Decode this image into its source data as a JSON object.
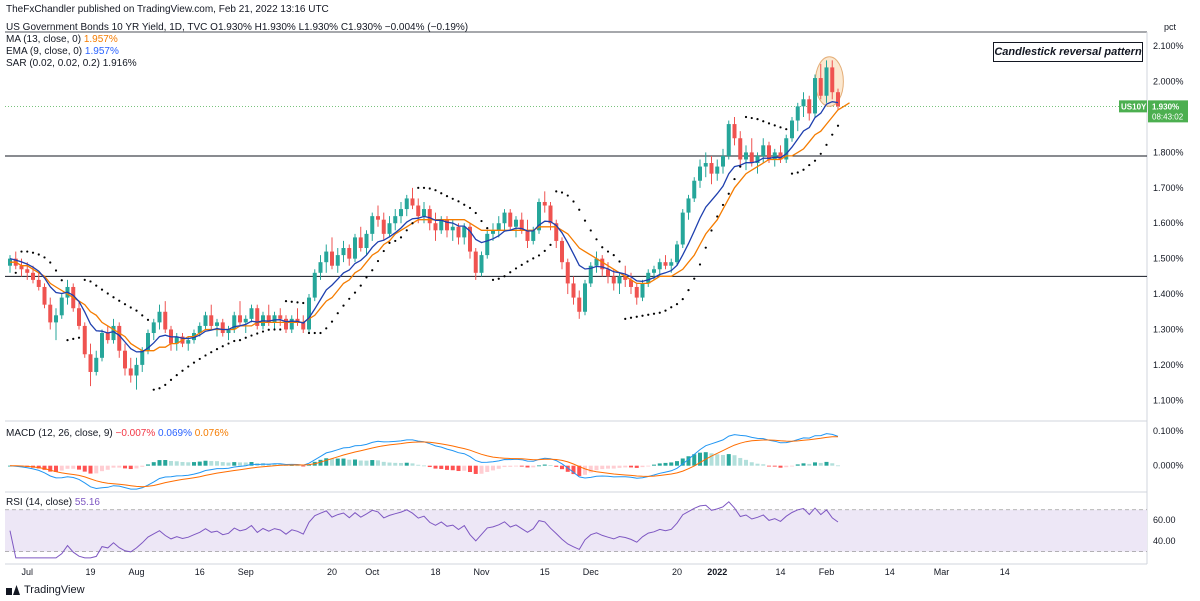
{
  "header": {
    "publisher": "TheFxChandler published on TradingView.com, Feb 21, 2022 13:16 UTC",
    "symbol_line": "US Government Bonds 10 YR Yield, 1D, TVC  O1.930%  H1.930%  L1.930%  C1.930%  −0.004% (−0.19%)",
    "ma_label": "MA (13, close, 0)",
    "ma_value": "1.957%",
    "ema_label": "EMA (9, close, 0)",
    "ema_value": "1.957%",
    "sar_label": "SAR (0.02, 0.02, 0.2)",
    "sar_value": "1.916%",
    "macd_label": "MACD (12, 26, close, 9)",
    "macd_value_1": "−0.007%",
    "macd_value_2": "0.069%",
    "macd_value_3": "0.076%",
    "rsi_label": "RSI (14, close)",
    "rsi_value": "55.16"
  },
  "annotation": "Candlestick reversal pattern",
  "footer": {
    "brand": "TradingView"
  },
  "colors": {
    "up": "#26a69a",
    "down": "#ef5350",
    "ma": "#f57c00",
    "ema": "#1e3fae",
    "sar": "#000000",
    "macd_line": "#2196f3",
    "signal_line": "#ff6d00",
    "rsi": "#7e57c2",
    "rsi_band": "#ede7f6",
    "price_label_bg": "#4caf50",
    "annotation_circle": "#fbe4c8"
  },
  "chart_data": {
    "type": "candlestick",
    "axis_unit_label": "pct",
    "y_ticks": [
      "2.100%",
      "2.000%",
      "1.900%",
      "1.800%",
      "1.700%",
      "1.600%",
      "1.500%",
      "1.400%",
      "1.300%",
      "1.200%",
      "1.100%"
    ],
    "y_tick_values": [
      2.1,
      2.0,
      1.9,
      1.8,
      1.7,
      1.6,
      1.5,
      1.4,
      1.3,
      1.2,
      1.1
    ],
    "ylim": [
      1.05,
      2.14
    ],
    "x_ticks": [
      "Jul",
      "19",
      "Aug",
      "16",
      "Sep",
      "20",
      "Oct",
      "18",
      "Nov",
      "15",
      "Dec",
      "20",
      "2022",
      "14",
      "Feb",
      "14",
      "Mar",
      "14"
    ],
    "x_tick_bar_index": [
      3,
      14,
      22,
      33,
      41,
      56,
      63,
      74,
      82,
      93,
      101,
      116,
      123,
      134,
      142,
      153,
      162,
      173
    ],
    "horizontal_levels": [
      1.79,
      1.45
    ],
    "current_price": {
      "symbol": "US10Y",
      "price": "1.930%",
      "countdown": "08:43:02"
    },
    "ohlc": [
      [
        1.48,
        1.51,
        1.46,
        1.5
      ],
      [
        1.5,
        1.52,
        1.47,
        1.48
      ],
      [
        1.48,
        1.5,
        1.45,
        1.47
      ],
      [
        1.47,
        1.49,
        1.44,
        1.46
      ],
      [
        1.46,
        1.48,
        1.43,
        1.44
      ],
      [
        1.44,
        1.46,
        1.41,
        1.42
      ],
      [
        1.42,
        1.43,
        1.36,
        1.37
      ],
      [
        1.37,
        1.39,
        1.3,
        1.32
      ],
      [
        1.32,
        1.36,
        1.27,
        1.34
      ],
      [
        1.34,
        1.4,
        1.33,
        1.39
      ],
      [
        1.39,
        1.44,
        1.37,
        1.42
      ],
      [
        1.42,
        1.43,
        1.35,
        1.36
      ],
      [
        1.36,
        1.38,
        1.3,
        1.31
      ],
      [
        1.31,
        1.32,
        1.22,
        1.23
      ],
      [
        1.23,
        1.26,
        1.14,
        1.18
      ],
      [
        1.18,
        1.24,
        1.17,
        1.22
      ],
      [
        1.22,
        1.3,
        1.21,
        1.29
      ],
      [
        1.29,
        1.31,
        1.26,
        1.27
      ],
      [
        1.27,
        1.33,
        1.26,
        1.31
      ],
      [
        1.31,
        1.32,
        1.22,
        1.24
      ],
      [
        1.24,
        1.26,
        1.17,
        1.19
      ],
      [
        1.19,
        1.22,
        1.15,
        1.17
      ],
      [
        1.17,
        1.22,
        1.13,
        1.2
      ],
      [
        1.2,
        1.25,
        1.18,
        1.24
      ],
      [
        1.24,
        1.3,
        1.23,
        1.29
      ],
      [
        1.29,
        1.33,
        1.27,
        1.32
      ],
      [
        1.32,
        1.37,
        1.3,
        1.35
      ],
      [
        1.35,
        1.38,
        1.29,
        1.3
      ],
      [
        1.3,
        1.31,
        1.24,
        1.26
      ],
      [
        1.26,
        1.29,
        1.24,
        1.28
      ],
      [
        1.28,
        1.29,
        1.25,
        1.26
      ],
      [
        1.26,
        1.28,
        1.24,
        1.27
      ],
      [
        1.27,
        1.3,
        1.26,
        1.29
      ],
      [
        1.29,
        1.32,
        1.28,
        1.31
      ],
      [
        1.31,
        1.35,
        1.3,
        1.34
      ],
      [
        1.34,
        1.37,
        1.3,
        1.31
      ],
      [
        1.31,
        1.33,
        1.28,
        1.32
      ],
      [
        1.32,
        1.33,
        1.28,
        1.29
      ],
      [
        1.29,
        1.31,
        1.27,
        1.3
      ],
      [
        1.3,
        1.35,
        1.29,
        1.34
      ],
      [
        1.34,
        1.38,
        1.31,
        1.32
      ],
      [
        1.32,
        1.34,
        1.29,
        1.33
      ],
      [
        1.33,
        1.37,
        1.32,
        1.36
      ],
      [
        1.36,
        1.37,
        1.3,
        1.31
      ],
      [
        1.31,
        1.35,
        1.3,
        1.34
      ],
      [
        1.34,
        1.37,
        1.31,
        1.32
      ],
      [
        1.32,
        1.35,
        1.3,
        1.34
      ],
      [
        1.34,
        1.36,
        1.31,
        1.33
      ],
      [
        1.33,
        1.34,
        1.29,
        1.3
      ],
      [
        1.3,
        1.34,
        1.29,
        1.33
      ],
      [
        1.33,
        1.36,
        1.31,
        1.32
      ],
      [
        1.32,
        1.34,
        1.29,
        1.3
      ],
      [
        1.3,
        1.4,
        1.29,
        1.39
      ],
      [
        1.39,
        1.47,
        1.38,
        1.46
      ],
      [
        1.46,
        1.51,
        1.44,
        1.49
      ],
      [
        1.49,
        1.54,
        1.46,
        1.52
      ],
      [
        1.52,
        1.56,
        1.47,
        1.48
      ],
      [
        1.48,
        1.53,
        1.46,
        1.51
      ],
      [
        1.51,
        1.55,
        1.49,
        1.53
      ],
      [
        1.53,
        1.54,
        1.48,
        1.5
      ],
      [
        1.5,
        1.57,
        1.49,
        1.56
      ],
      [
        1.56,
        1.59,
        1.52,
        1.53
      ],
      [
        1.53,
        1.58,
        1.51,
        1.57
      ],
      [
        1.57,
        1.63,
        1.55,
        1.62
      ],
      [
        1.62,
        1.65,
        1.59,
        1.61
      ],
      [
        1.61,
        1.63,
        1.55,
        1.57
      ],
      [
        1.57,
        1.62,
        1.56,
        1.6
      ],
      [
        1.6,
        1.64,
        1.58,
        1.62
      ],
      [
        1.62,
        1.66,
        1.6,
        1.64
      ],
      [
        1.64,
        1.68,
        1.62,
        1.67
      ],
      [
        1.67,
        1.7,
        1.64,
        1.65
      ],
      [
        1.65,
        1.67,
        1.6,
        1.62
      ],
      [
        1.62,
        1.66,
        1.6,
        1.64
      ],
      [
        1.64,
        1.65,
        1.58,
        1.6
      ],
      [
        1.6,
        1.63,
        1.55,
        1.58
      ],
      [
        1.58,
        1.62,
        1.57,
        1.61
      ],
      [
        1.61,
        1.62,
        1.56,
        1.58
      ],
      [
        1.58,
        1.61,
        1.55,
        1.59
      ],
      [
        1.59,
        1.6,
        1.54,
        1.56
      ],
      [
        1.56,
        1.6,
        1.54,
        1.59
      ],
      [
        1.59,
        1.6,
        1.5,
        1.52
      ],
      [
        1.52,
        1.53,
        1.44,
        1.46
      ],
      [
        1.46,
        1.52,
        1.45,
        1.51
      ],
      [
        1.51,
        1.58,
        1.5,
        1.57
      ],
      [
        1.57,
        1.6,
        1.55,
        1.58
      ],
      [
        1.58,
        1.62,
        1.56,
        1.6
      ],
      [
        1.6,
        1.64,
        1.58,
        1.63
      ],
      [
        1.63,
        1.64,
        1.58,
        1.59
      ],
      [
        1.59,
        1.62,
        1.56,
        1.61
      ],
      [
        1.61,
        1.63,
        1.57,
        1.58
      ],
      [
        1.58,
        1.61,
        1.53,
        1.55
      ],
      [
        1.55,
        1.59,
        1.54,
        1.58
      ],
      [
        1.58,
        1.67,
        1.57,
        1.66
      ],
      [
        1.66,
        1.69,
        1.63,
        1.65
      ],
      [
        1.65,
        1.66,
        1.58,
        1.6
      ],
      [
        1.6,
        1.61,
        1.53,
        1.55
      ],
      [
        1.55,
        1.56,
        1.47,
        1.49
      ],
      [
        1.49,
        1.5,
        1.4,
        1.43
      ],
      [
        1.43,
        1.45,
        1.37,
        1.39
      ],
      [
        1.39,
        1.41,
        1.33,
        1.35
      ],
      [
        1.35,
        1.44,
        1.34,
        1.43
      ],
      [
        1.43,
        1.49,
        1.42,
        1.48
      ],
      [
        1.48,
        1.52,
        1.46,
        1.5
      ],
      [
        1.5,
        1.51,
        1.45,
        1.47
      ],
      [
        1.47,
        1.49,
        1.43,
        1.45
      ],
      [
        1.45,
        1.47,
        1.41,
        1.43
      ],
      [
        1.43,
        1.46,
        1.4,
        1.45
      ],
      [
        1.45,
        1.48,
        1.42,
        1.44
      ],
      [
        1.44,
        1.46,
        1.4,
        1.42
      ],
      [
        1.42,
        1.43,
        1.37,
        1.39
      ],
      [
        1.39,
        1.44,
        1.38,
        1.43
      ],
      [
        1.43,
        1.47,
        1.42,
        1.46
      ],
      [
        1.46,
        1.48,
        1.44,
        1.47
      ],
      [
        1.47,
        1.5,
        1.45,
        1.49
      ],
      [
        1.49,
        1.51,
        1.47,
        1.48
      ],
      [
        1.48,
        1.5,
        1.46,
        1.49
      ],
      [
        1.49,
        1.55,
        1.48,
        1.54
      ],
      [
        1.54,
        1.64,
        1.53,
        1.63
      ],
      [
        1.63,
        1.68,
        1.61,
        1.67
      ],
      [
        1.67,
        1.73,
        1.66,
        1.72
      ],
      [
        1.72,
        1.78,
        1.7,
        1.76
      ],
      [
        1.76,
        1.8,
        1.73,
        1.77
      ],
      [
        1.77,
        1.79,
        1.71,
        1.74
      ],
      [
        1.74,
        1.78,
        1.72,
        1.76
      ],
      [
        1.76,
        1.81,
        1.74,
        1.79
      ],
      [
        1.79,
        1.89,
        1.78,
        1.88
      ],
      [
        1.88,
        1.9,
        1.82,
        1.84
      ],
      [
        1.84,
        1.86,
        1.76,
        1.78
      ],
      [
        1.78,
        1.82,
        1.75,
        1.8
      ],
      [
        1.8,
        1.84,
        1.76,
        1.77
      ],
      [
        1.77,
        1.8,
        1.74,
        1.79
      ],
      [
        1.79,
        1.84,
        1.77,
        1.82
      ],
      [
        1.82,
        1.83,
        1.77,
        1.78
      ],
      [
        1.78,
        1.81,
        1.76,
        1.8
      ],
      [
        1.8,
        1.82,
        1.77,
        1.78
      ],
      [
        1.78,
        1.85,
        1.77,
        1.84
      ],
      [
        1.84,
        1.9,
        1.83,
        1.89
      ],
      [
        1.89,
        1.94,
        1.86,
        1.93
      ],
      [
        1.93,
        1.97,
        1.9,
        1.95
      ],
      [
        1.95,
        1.96,
        1.89,
        1.91
      ],
      [
        1.91,
        2.02,
        1.9,
        2.01
      ],
      [
        2.01,
        2.05,
        1.95,
        1.96
      ],
      [
        1.96,
        2.06,
        1.94,
        2.04
      ],
      [
        2.04,
        2.06,
        1.95,
        1.97
      ],
      [
        1.97,
        1.98,
        1.92,
        1.93
      ]
    ],
    "ma_13": [
      1.49,
      1.49,
      1.48,
      1.48,
      1.47,
      1.46,
      1.45,
      1.43,
      1.42,
      1.41,
      1.4,
      1.39,
      1.38,
      1.37,
      1.35,
      1.34,
      1.32,
      1.31,
      1.3,
      1.29,
      1.28,
      1.26,
      1.25,
      1.24,
      1.24,
      1.24,
      1.25,
      1.25,
      1.26,
      1.26,
      1.27,
      1.28,
      1.28,
      1.29,
      1.3,
      1.3,
      1.3,
      1.3,
      1.3,
      1.3,
      1.31,
      1.31,
      1.31,
      1.32,
      1.32,
      1.32,
      1.32,
      1.32,
      1.32,
      1.32,
      1.32,
      1.32,
      1.33,
      1.34,
      1.36,
      1.38,
      1.39,
      1.41,
      1.43,
      1.44,
      1.46,
      1.47,
      1.49,
      1.51,
      1.52,
      1.54,
      1.55,
      1.57,
      1.58,
      1.59,
      1.6,
      1.61,
      1.61,
      1.61,
      1.61,
      1.61,
      1.61,
      1.61,
      1.61,
      1.61,
      1.6,
      1.59,
      1.58,
      1.58,
      1.58,
      1.58,
      1.58,
      1.58,
      1.58,
      1.58,
      1.58,
      1.58,
      1.59,
      1.59,
      1.59,
      1.59,
      1.58,
      1.57,
      1.55,
      1.53,
      1.52,
      1.51,
      1.5,
      1.49,
      1.48,
      1.47,
      1.46,
      1.45,
      1.44,
      1.43,
      1.43,
      1.43,
      1.44,
      1.45,
      1.45,
      1.45,
      1.46,
      1.47,
      1.49,
      1.51,
      1.54,
      1.57,
      1.59,
      1.61,
      1.64,
      1.67,
      1.7,
      1.72,
      1.74,
      1.75,
      1.76,
      1.77,
      1.78,
      1.78,
      1.78,
      1.79,
      1.79,
      1.8,
      1.81,
      1.83,
      1.85,
      1.86,
      1.88,
      1.9,
      1.92,
      1.93,
      1.94
    ]
  }
}
